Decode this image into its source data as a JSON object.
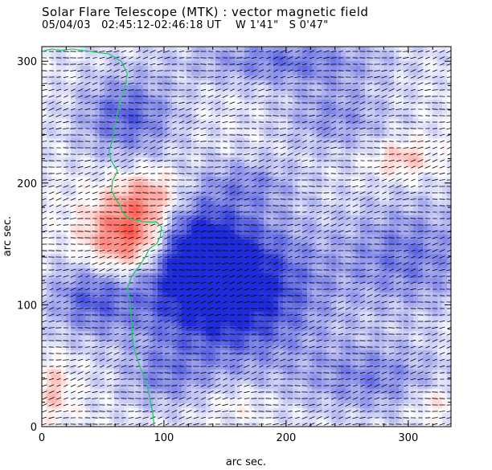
{
  "header": {
    "title": "Solar Flare Telescope (MTK) : vector magnetic field",
    "subtitle_date": "05/04/03",
    "subtitle_time": "02:45:12-02:46:18 UT",
    "subtitle_pos_w": "W 1'41\"",
    "subtitle_pos_s": "S 0'47\""
  },
  "chart_data": {
    "type": "heatmap",
    "title": "Solar Flare Telescope (MTK) : vector magnetic field",
    "xlabel": "arc sec.",
    "ylabel": "arc sec.",
    "xlim": [
      0,
      335
    ],
    "ylim": [
      0,
      312
    ],
    "xticks": [
      0,
      100,
      200,
      300
    ],
    "yticks": [
      0,
      100,
      200,
      300
    ],
    "xtick_labels": [
      "0",
      "100",
      "200",
      "300"
    ],
    "ytick_labels": [
      "0",
      "100",
      "200",
      "300"
    ],
    "colors": {
      "positive": "#ff2a1a",
      "negative": "#1f2bd8",
      "neutral": "#ffffff",
      "contour": "#22c96a",
      "vectors": "#000000"
    },
    "regions": [
      {
        "polarity": "negative",
        "cx": 150,
        "cy": 112,
        "rx": 75,
        "ry": 60,
        "strength": 1.0
      },
      {
        "polarity": "negative",
        "cx": 120,
        "cy": 150,
        "rx": 45,
        "ry": 40,
        "strength": 0.6
      },
      {
        "polarity": "positive",
        "cx": 75,
        "cy": 155,
        "rx": 38,
        "ry": 34,
        "strength": 1.0
      },
      {
        "polarity": "positive",
        "cx": 90,
        "cy": 190,
        "rx": 30,
        "ry": 22,
        "strength": 0.4
      },
      {
        "polarity": "positive",
        "cx": 295,
        "cy": 220,
        "rx": 25,
        "ry": 15,
        "strength": 0.35
      },
      {
        "polarity": "negative",
        "cx": 70,
        "cy": 255,
        "rx": 40,
        "ry": 35,
        "strength": 0.55
      },
      {
        "polarity": "negative",
        "cx": 200,
        "cy": 300,
        "rx": 80,
        "ry": 20,
        "strength": 0.45
      },
      {
        "polarity": "negative",
        "cx": 300,
        "cy": 140,
        "rx": 55,
        "ry": 45,
        "strength": 0.45
      },
      {
        "polarity": "negative",
        "cx": 40,
        "cy": 105,
        "rx": 35,
        "ry": 30,
        "strength": 0.5
      },
      {
        "polarity": "negative",
        "cx": 270,
        "cy": 40,
        "rx": 60,
        "ry": 30,
        "strength": 0.4
      },
      {
        "polarity": "negative",
        "cx": 240,
        "cy": 255,
        "rx": 45,
        "ry": 30,
        "strength": 0.35
      },
      {
        "polarity": "positive",
        "cx": 10,
        "cy": 30,
        "rx": 15,
        "ry": 25,
        "strength": 0.3
      },
      {
        "polarity": "positive",
        "cx": 320,
        "cy": 20,
        "rx": 20,
        "ry": 15,
        "strength": 0.25
      },
      {
        "polarity": "positive",
        "cx": 160,
        "cy": 20,
        "rx": 30,
        "ry": 15,
        "strength": 0.15
      },
      {
        "polarity": "negative",
        "cx": 170,
        "cy": 200,
        "rx": 40,
        "ry": 20,
        "strength": 0.3
      },
      {
        "polarity": "negative",
        "cx": 100,
        "cy": 40,
        "rx": 35,
        "ry": 25,
        "strength": 0.3
      }
    ],
    "limb_contour": [
      [
        0,
        308
      ],
      [
        8,
        310
      ],
      [
        15,
        309
      ],
      [
        25,
        310
      ],
      [
        40,
        308
      ],
      [
        55,
        306
      ],
      [
        65,
        300
      ],
      [
        70,
        290
      ],
      [
        68,
        278
      ],
      [
        64,
        268
      ],
      [
        62,
        258
      ],
      [
        60,
        248
      ],
      [
        58,
        236
      ],
      [
        55,
        226
      ],
      [
        57,
        218
      ],
      [
        62,
        210
      ],
      [
        58,
        202
      ],
      [
        57,
        194
      ],
      [
        61,
        186
      ],
      [
        65,
        180
      ],
      [
        66,
        176
      ],
      [
        70,
        172
      ],
      [
        75,
        170
      ],
      [
        85,
        168
      ],
      [
        94,
        168
      ],
      [
        98,
        164
      ],
      [
        97,
        156
      ],
      [
        94,
        150
      ],
      [
        88,
        146
      ],
      [
        85,
        140
      ],
      [
        80,
        132
      ],
      [
        74,
        124
      ],
      [
        70,
        114
      ],
      [
        72,
        104
      ],
      [
        73,
        92
      ],
      [
        74,
        82
      ],
      [
        74,
        72
      ],
      [
        76,
        62
      ],
      [
        80,
        50
      ],
      [
        84,
        40
      ],
      [
        87,
        30
      ],
      [
        89,
        20
      ],
      [
        91,
        10
      ],
      [
        92,
        0
      ]
    ],
    "vector_field": {
      "row_spacing": 8,
      "col_spacing": 9,
      "dominant_direction": "rightward, slightly inclined"
    }
  }
}
